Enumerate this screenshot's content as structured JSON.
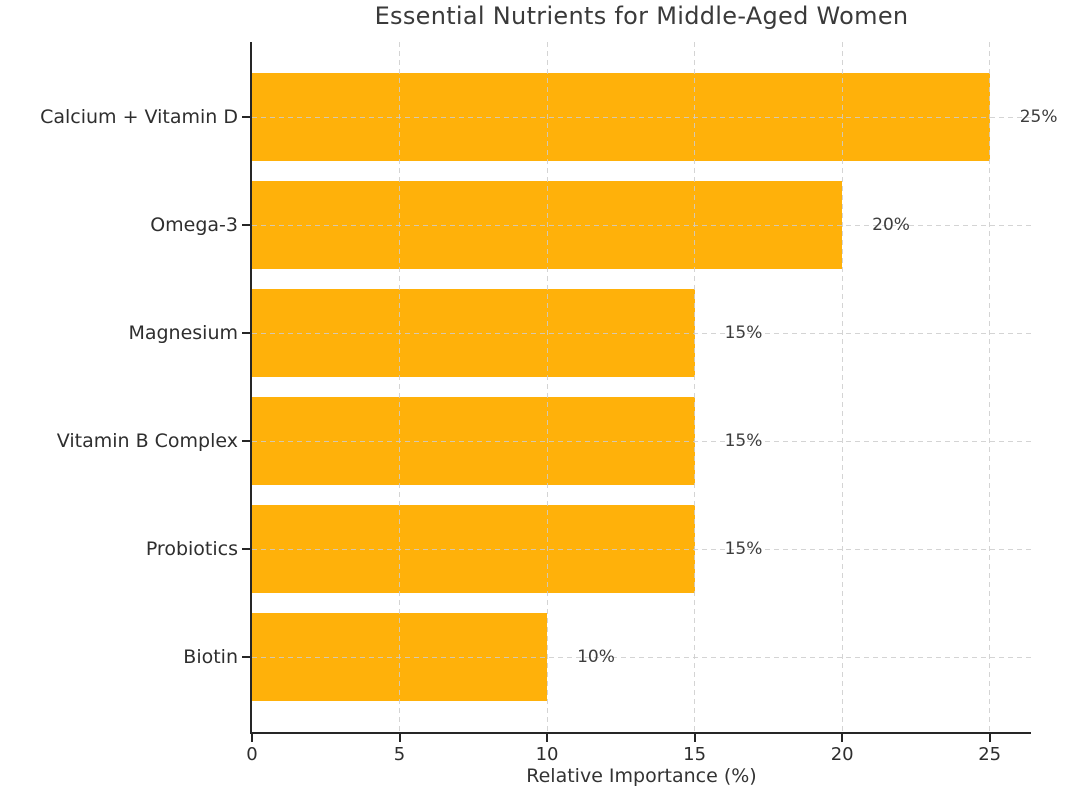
{
  "chart_data": {
    "type": "bar",
    "orientation": "horizontal",
    "title": "Essential Nutrients for Middle-Aged Women",
    "xlabel": "Relative Importance (%)",
    "ylabel": "",
    "categories": [
      "Calcium + Vitamin D",
      "Omega-3",
      "Magnesium",
      "Vitamin B Complex",
      "Probiotics",
      "Biotin"
    ],
    "values": [
      25,
      20,
      15,
      15,
      15,
      10
    ],
    "value_labels": [
      "25%",
      "20%",
      "15%",
      "15%",
      "15%",
      "10%"
    ],
    "x_ticks": [
      0,
      5,
      10,
      15,
      20,
      25
    ],
    "x_tick_labels": [
      "0",
      "5",
      "10",
      "15",
      "20",
      "25"
    ],
    "xlim": [
      0,
      26.4
    ],
    "grid": "dashed vertical and horizontal gridlines, drawn over bars",
    "legend": "none",
    "colors": {
      "bar": "#FFB10A",
      "title_text": "#3a3a3a",
      "tick_text": "#2e2e2e",
      "value_text": "#3d3d3d",
      "axis": "#262626",
      "grid": "#cccccc",
      "background": "#ffffff"
    }
  }
}
